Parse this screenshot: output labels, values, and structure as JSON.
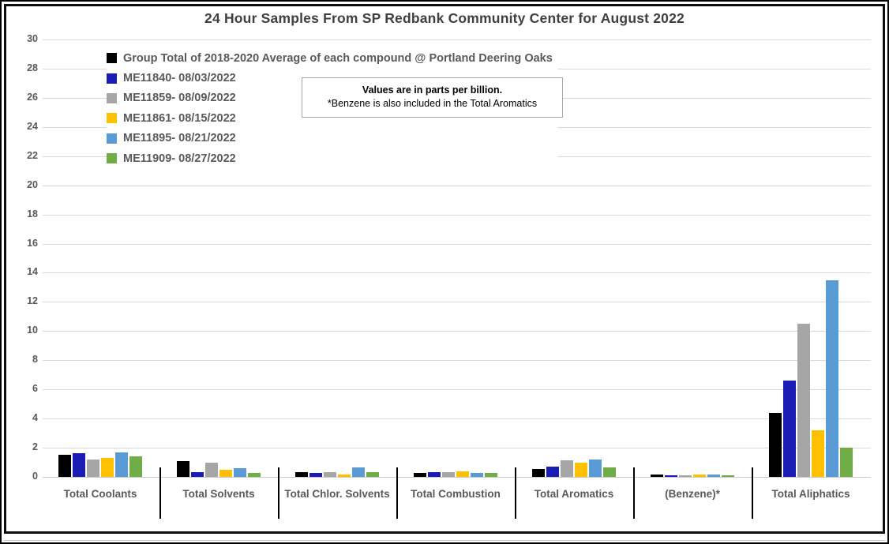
{
  "title": "24 Hour Samples From SP Redbank Community Center for August 2022",
  "note": {
    "line1": "Values are in parts per billion.",
    "line2": "*Benzene is also included in the Total Aromatics"
  },
  "chart_data": {
    "type": "bar",
    "title": "24 Hour Samples From SP Redbank Community Center for August 2022",
    "values_unit": "parts per billion",
    "categories": [
      "Total Coolants",
      "Total Solvents",
      "Total Chlor. Solvents",
      "Total Combustion",
      "Total Aromatics",
      "(Benzene)*",
      "Total Aliphatics"
    ],
    "series": [
      {
        "name": "Group Total of 2018-2020 Average of each compound @ Portland Deering Oaks",
        "color": "#000000",
        "values": [
          1.5,
          1.1,
          0.35,
          0.25,
          0.55,
          0.15,
          4.4
        ]
      },
      {
        "name": "ME11840- 08/03/2022",
        "color": "#1b1cb3",
        "values": [
          1.6,
          0.35,
          0.25,
          0.3,
          0.7,
          0.1,
          6.6
        ]
      },
      {
        "name": "ME11859- 08/09/2022",
        "color": "#a6a6a6",
        "values": [
          1.2,
          1.0,
          0.35,
          0.3,
          1.15,
          0.1,
          10.5
        ]
      },
      {
        "name": "ME11861- 08/15/2022",
        "color": "#ffc000",
        "values": [
          1.3,
          0.5,
          0.15,
          0.4,
          0.95,
          0.15,
          3.2
        ]
      },
      {
        "name": "ME11895- 08/21/2022",
        "color": "#5b9bd5",
        "values": [
          1.7,
          0.6,
          0.65,
          0.25,
          1.2,
          0.15,
          13.5
        ]
      },
      {
        "name": "ME11909- 08/27/2022",
        "color": "#70ad47",
        "values": [
          1.4,
          0.25,
          0.3,
          0.25,
          0.65,
          0.1,
          2.0
        ]
      }
    ],
    "ylim": [
      0,
      30
    ],
    "ytick_step": 2,
    "grid": true,
    "legend_position": "top-left",
    "annotation_box": "Values are in parts per billion. *Benzene is also included in the Total Aromatics"
  }
}
